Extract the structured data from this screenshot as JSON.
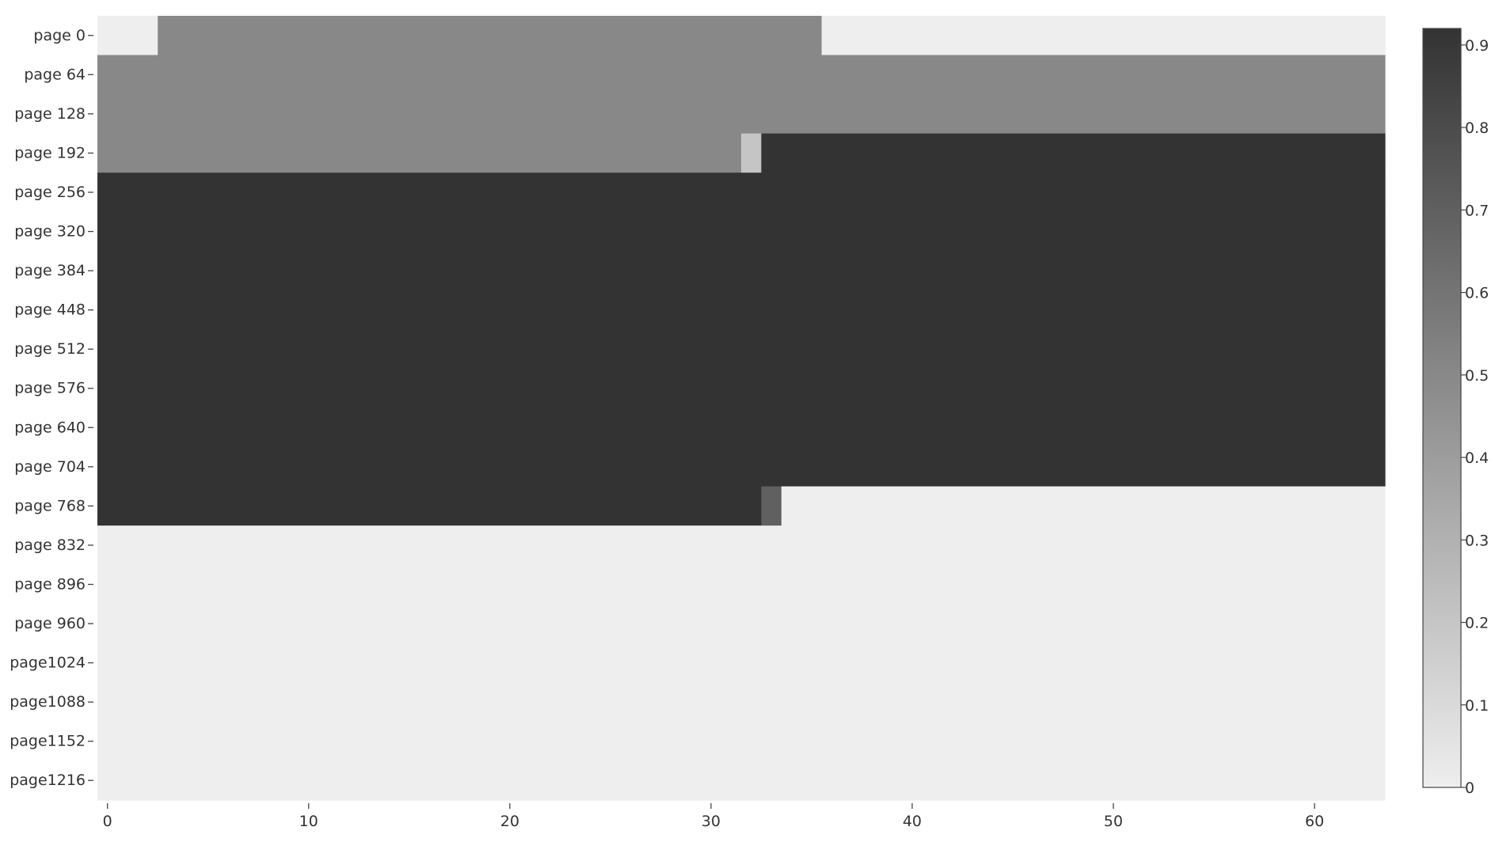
{
  "chart_data": {
    "type": "heatmap",
    "title": "",
    "xlabel": "",
    "ylabel": "",
    "x_ticks": [
      0,
      10,
      20,
      30,
      40,
      50,
      60
    ],
    "xlim": [
      -0.5,
      63.5
    ],
    "rows": [
      "page   0",
      "page  64",
      "page 128",
      "page 192",
      "page 256",
      "page 320",
      "page 384",
      "page 448",
      "page 512",
      "page 576",
      "page 640",
      "page 704",
      "page 768",
      "page 832",
      "page 896",
      "page 960",
      "page1024",
      "page1088",
      "page1152",
      "page1216"
    ],
    "runs": [
      [
        [
          0,
          2,
          0.0
        ],
        [
          3,
          35,
          0.5
        ],
        [
          36,
          63,
          0.0
        ]
      ],
      [
        [
          0,
          63,
          0.5
        ]
      ],
      [
        [
          0,
          63,
          0.5
        ]
      ],
      [
        [
          0,
          31,
          0.5
        ],
        [
          32,
          32,
          0.2
        ],
        [
          33,
          63,
          0.92
        ]
      ],
      [
        [
          0,
          63,
          0.92
        ]
      ],
      [
        [
          0,
          63,
          0.92
        ]
      ],
      [
        [
          0,
          63,
          0.92
        ]
      ],
      [
        [
          0,
          63,
          0.92
        ]
      ],
      [
        [
          0,
          63,
          0.92
        ]
      ],
      [
        [
          0,
          63,
          0.92
        ]
      ],
      [
        [
          0,
          63,
          0.92
        ]
      ],
      [
        [
          0,
          63,
          0.92
        ]
      ],
      [
        [
          0,
          32,
          0.92
        ],
        [
          33,
          33,
          0.7
        ],
        [
          34,
          63,
          0.0
        ]
      ],
      [
        [
          0,
          63,
          0.0
        ]
      ],
      [
        [
          0,
          63,
          0.0
        ]
      ],
      [
        [
          0,
          63,
          0.0
        ]
      ],
      [
        [
          0,
          63,
          0.0
        ]
      ],
      [
        [
          0,
          63,
          0.0
        ]
      ],
      [
        [
          0,
          63,
          0.0
        ]
      ],
      [
        [
          0,
          63,
          0.0
        ]
      ]
    ],
    "colorscale": {
      "min": 0,
      "max": 0.92,
      "low_color": "#eeeeee",
      "high_color": "#333333",
      "ticks": [
        0,
        0.1,
        0.2,
        0.3,
        0.4,
        0.5,
        0.6,
        0.7,
        0.8,
        0.9
      ],
      "tick_labels": [
        "0",
        "0.1",
        "0.2",
        "0.3",
        "0.4",
        "0.5",
        "0.6",
        "0.7",
        "0.8",
        "0.9"
      ]
    },
    "grid": false,
    "legend": "colorbar-right"
  }
}
